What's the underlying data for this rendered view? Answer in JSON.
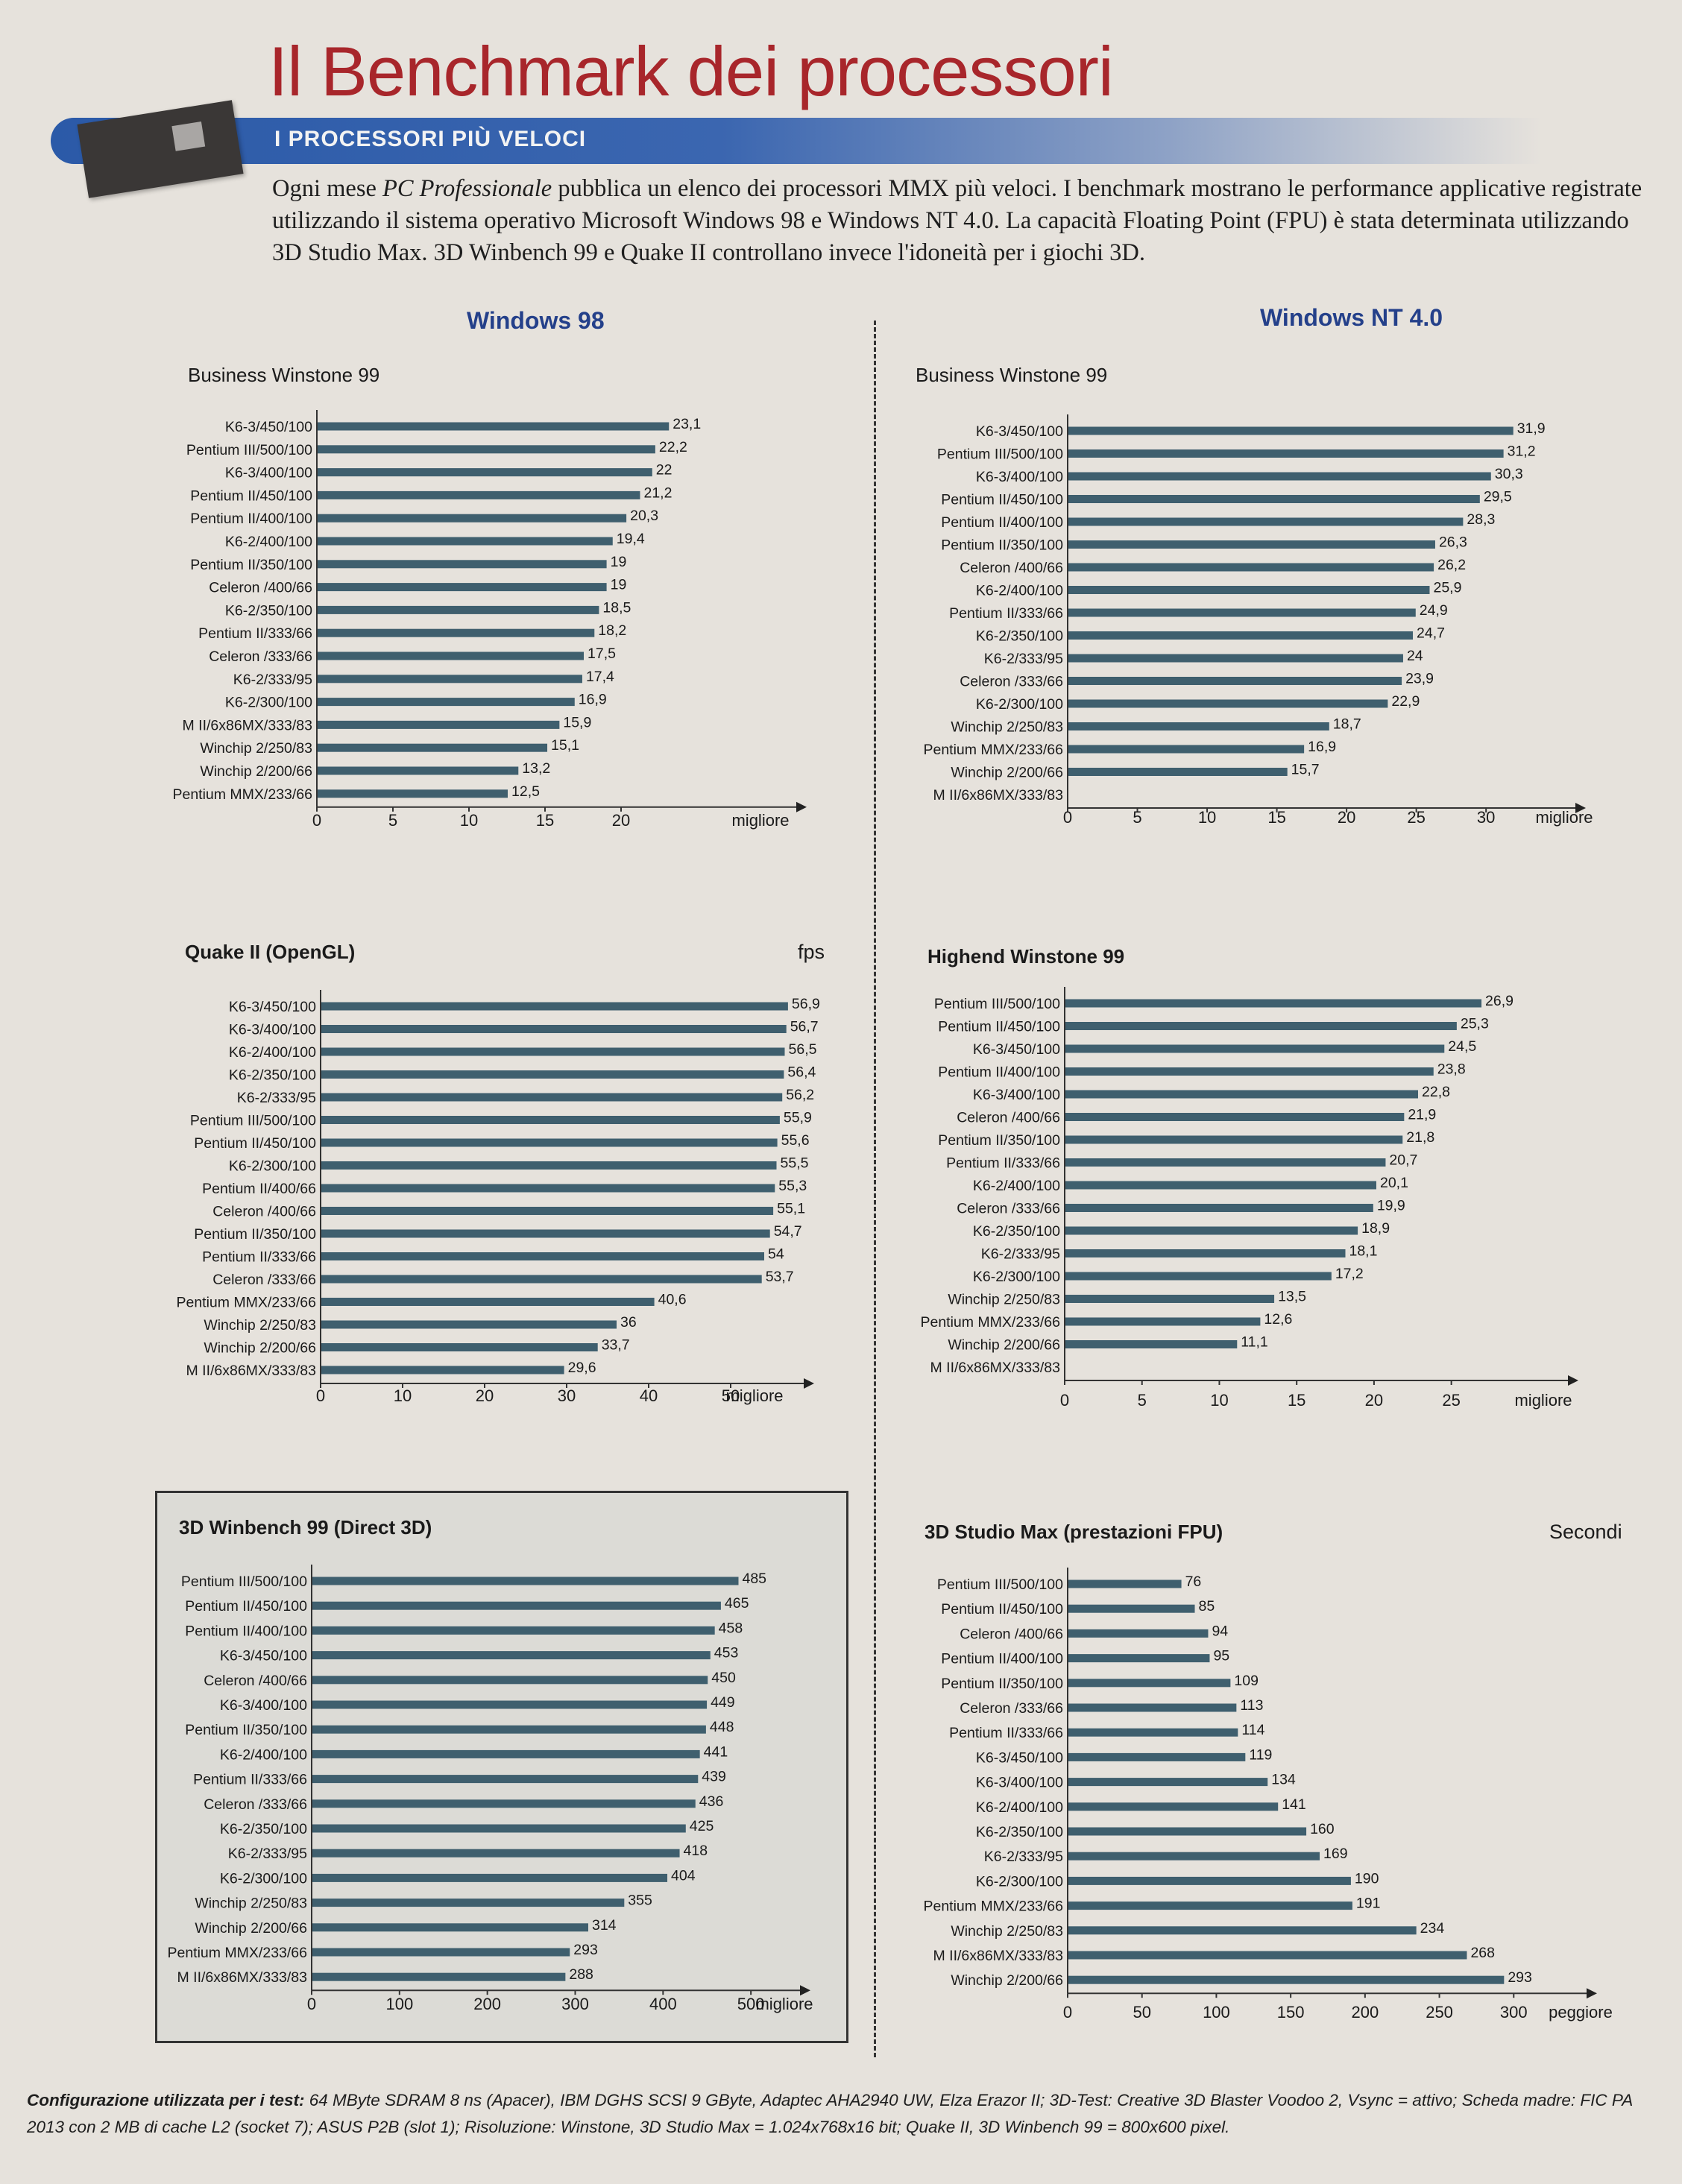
{
  "header": {
    "title": "Il Benchmark dei processori",
    "banner": "I PROCESSORI PIÙ VELOCI",
    "intro_before": "Ogni mese ",
    "intro_italic": "PC Professionale",
    "intro_after": " pubblica un elenco dei processori MMX più veloci. I benchmark mostrano le performance applicative registrate utilizzando il sistema operativo Microsoft Windows 98 e Windows NT 4.0. La capacità Floating Point (FPU) è stata determinata utilizzando 3D Studio Max. 3D Winbench 99 e Quake II controllano invece l'idoneità per i giochi 3D.",
    "col_left": "Windows 98",
    "col_right": "Windows NT 4.0"
  },
  "colors": {
    "bar": "#3f5f6e",
    "title": "#a8262b",
    "banner": "#2b5aa8",
    "column_head": "#24408a"
  },
  "footer": {
    "label": "Configurazione utilizzata per i test:",
    "text": " 64 MByte SDRAM 8 ns (Apacer), IBM DGHS SCSI 9 GByte, Adaptec AHA2940 UW, Elza Erazor II; 3D-Test: Creative 3D Blaster Voodoo 2, Vsync = attivo; Scheda madre: FIC PA 2013 con 2 MB di cache L2 (socket 7); ASUS P2B (slot 1); Risoluzione: Winstone, 3D Studio Max = 1.024x768x16 bit; Quake II, 3D Winbench 99 = 800x600 pixel."
  },
  "chart_data": [
    {
      "id": "bw98",
      "type": "bar",
      "orientation": "horizontal",
      "title": "Business Winstone 99",
      "unit": "",
      "xlabel": "migliore",
      "xlim": [
        0,
        25
      ],
      "ticks": [
        0,
        5,
        10,
        15,
        20
      ],
      "categories": [
        "K6-3/450/100",
        "Pentium III/500/100",
        "K6-3/400/100",
        "Pentium II/450/100",
        "Pentium II/400/100",
        "K6-2/400/100",
        "Pentium II/350/100",
        "Celeron /400/66",
        "K6-2/350/100",
        "Pentium II/333/66",
        "Celeron /333/66",
        "K6-2/333/95",
        "K6-2/300/100",
        "M II/6x86MX/333/83",
        "Winchip 2/250/83",
        "Winchip 2/200/66",
        "Pentium MMX/233/66"
      ],
      "values": [
        23.1,
        22.2,
        22,
        21.2,
        20.3,
        19.4,
        19,
        19,
        18.5,
        18.2,
        17.5,
        17.4,
        16.9,
        15.9,
        15.1,
        13.2,
        12.5
      ],
      "labels": [
        "23,1",
        "22,2",
        "22",
        "21,2",
        "20,3",
        "19,4",
        "19",
        "19",
        "18,5",
        "18,2",
        "17,5",
        "17,4",
        "16,9",
        "15,9",
        "15,1",
        "13,2",
        "12,5"
      ]
    },
    {
      "id": "bnt",
      "type": "bar",
      "orientation": "horizontal",
      "title": "Business Winstone 99",
      "unit": "",
      "xlabel": "migliore",
      "xlim": [
        0,
        34
      ],
      "ticks": [
        0,
        5,
        10,
        15,
        20,
        25,
        30
      ],
      "categories": [
        "K6-3/450/100",
        "Pentium III/500/100",
        "K6-3/400/100",
        "Pentium II/450/100",
        "Pentium II/400/100",
        "Pentium II/350/100",
        "Celeron /400/66",
        "K6-2/400/100",
        "Pentium II/333/66",
        "K6-2/350/100",
        "K6-2/333/95",
        "Celeron /333/66",
        "K6-2/300/100",
        "Winchip 2/250/83",
        "Pentium MMX/233/66",
        "Winchip 2/200/66",
        "M II/6x86MX/333/83"
      ],
      "values": [
        31.9,
        31.2,
        30.3,
        29.5,
        28.3,
        26.3,
        26.2,
        25.9,
        24.9,
        24.7,
        24,
        23.9,
        22.9,
        18.7,
        16.9,
        15.7,
        null
      ],
      "labels": [
        "31,9",
        "31,2",
        "30,3",
        "29,5",
        "28,3",
        "26,3",
        "26,2",
        "25,9",
        "24,9",
        "24,7",
        "24",
        "23,9",
        "22,9",
        "18,7",
        "16,9",
        "15,7",
        ""
      ]
    },
    {
      "id": "quake",
      "type": "bar",
      "orientation": "horizontal",
      "title": "Quake II (OpenGL)",
      "unit": "fps",
      "xlabel": "migliore",
      "xlim": [
        0,
        60
      ],
      "ticks": [
        0,
        10,
        20,
        30,
        40,
        50
      ],
      "categories": [
        "K6-3/450/100",
        "K6-3/400/100",
        "K6-2/400/100",
        "K6-2/350/100",
        "K6-2/333/95",
        "Pentium III/500/100",
        "Pentium II/450/100",
        "K6-2/300/100",
        "Pentium II/400/66",
        "Celeron /400/66",
        "Pentium II/350/100",
        "Pentium II/333/66",
        "Celeron /333/66",
        "Pentium MMX/233/66",
        "Winchip 2/250/83",
        "Winchip 2/200/66",
        "M II/6x86MX/333/83"
      ],
      "values": [
        56.9,
        56.7,
        56.5,
        56.4,
        56.2,
        55.9,
        55.6,
        55.5,
        55.3,
        55.1,
        54.7,
        54,
        53.7,
        40.6,
        36,
        33.7,
        29.6
      ],
      "labels": [
        "56,9",
        "56,7",
        "56,5",
        "56,4",
        "56,2",
        "55,9",
        "55,6",
        "55,5",
        "55,3",
        "55,1",
        "54,7",
        "54",
        "53,7",
        "40,6",
        "36",
        "33,7",
        "29,6"
      ]
    },
    {
      "id": "highend",
      "type": "bar",
      "orientation": "horizontal",
      "title": "Highend Winstone 99",
      "unit": "",
      "xlabel": "migliore",
      "xlim": [
        0,
        29.5
      ],
      "ticks": [
        0,
        5,
        10,
        15,
        20,
        25
      ],
      "categories": [
        "Pentium III/500/100",
        "Pentium II/450/100",
        "K6-3/450/100",
        "Pentium II/400/100",
        "K6-3/400/100",
        "Celeron /400/66",
        "Pentium II/350/100",
        "Pentium II/333/66",
        "K6-2/400/100",
        "Celeron /333/66",
        "K6-2/350/100",
        "K6-2/333/95",
        "K6-2/300/100",
        "Winchip 2/250/83",
        "Pentium MMX/233/66",
        "Winchip 2/200/66",
        "M II/6x86MX/333/83"
      ],
      "values": [
        26.9,
        25.3,
        24.5,
        23.8,
        22.8,
        21.9,
        21.8,
        20.7,
        20.1,
        19.9,
        18.9,
        18.1,
        17.2,
        13.5,
        12.6,
        11.1,
        null
      ],
      "labels": [
        "26,9",
        "25,3",
        "24,5",
        "23,8",
        "22,8",
        "21,9",
        "21,8",
        "20,7",
        "20,1",
        "19,9",
        "18,9",
        "18,1",
        "17,2",
        "13,5",
        "12,6",
        "11,1",
        ""
      ]
    },
    {
      "id": "winbench",
      "type": "bar",
      "orientation": "horizontal",
      "title": "3D Winbench 99 (Direct 3D)",
      "unit": "",
      "xlabel": "migliore",
      "xlim": [
        0,
        600
      ],
      "ticks": [
        0,
        100,
        200,
        300,
        400,
        500
      ],
      "categories": [
        "Pentium III/500/100",
        "Pentium II/450/100",
        "Pentium II/400/100",
        "K6-3/450/100",
        "Celeron /400/66",
        "K6-3/400/100",
        "Pentium II/350/100",
        "K6-2/400/100",
        "Pentium II/333/66",
        "Celeron /333/66",
        "K6-2/350/100",
        "K6-2/333/95",
        "K6-2/300/100",
        "Winchip 2/250/83",
        "Winchip 2/200/66",
        "Pentium MMX/233/66",
        "M II/6x86MX/333/83"
      ],
      "values": [
        485,
        465,
        458,
        453,
        450,
        449,
        448,
        441,
        439,
        436,
        425,
        418,
        404,
        355,
        314,
        293,
        288
      ],
      "labels": [
        "485",
        "465",
        "458",
        "453",
        "450",
        "449",
        "448",
        "441",
        "439",
        "436",
        "425",
        "418",
        "404",
        "355",
        "314",
        "293",
        "288"
      ]
    },
    {
      "id": "studio",
      "type": "bar",
      "orientation": "horizontal",
      "title": "3D Studio Max (prestazioni FPU)",
      "unit": "Secondi",
      "xlabel": "peggiore",
      "xlim": [
        0,
        350
      ],
      "ticks": [
        0,
        50,
        100,
        150,
        200,
        250,
        300
      ],
      "categories": [
        "Pentium III/500/100",
        "Pentium II/450/100",
        "Celeron /400/66",
        "Pentium II/400/100",
        "Pentium II/350/100",
        "Celeron /333/66",
        "Pentium II/333/66",
        "K6-3/450/100",
        "K6-3/400/100",
        "K6-2/400/100",
        "K6-2/350/100",
        "K6-2/333/95",
        "K6-2/300/100",
        "Pentium MMX/233/66",
        "Winchip 2/250/83",
        "M II/6x86MX/333/83",
        "Winchip 2/200/66"
      ],
      "values": [
        76,
        85,
        94,
        95,
        109,
        113,
        114,
        119,
        134,
        141,
        160,
        169,
        190,
        191,
        234,
        268,
        293
      ],
      "labels": [
        "76",
        "85",
        "94",
        "95",
        "109",
        "113",
        "114",
        "119",
        "134",
        "141",
        "160",
        "169",
        "190",
        "191",
        "234",
        "268",
        "293"
      ]
    }
  ]
}
